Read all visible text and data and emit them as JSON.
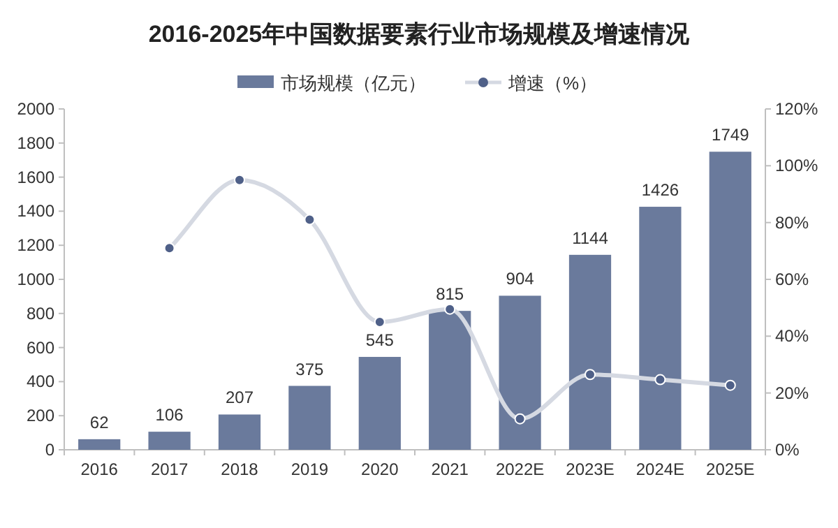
{
  "chart_data": {
    "type": "bar",
    "title": "2016-2025年中国数据要素行业市场规模及增速情况",
    "categories": [
      "2016",
      "2017",
      "2018",
      "2019",
      "2020",
      "2021",
      "2022E",
      "2023E",
      "2024E",
      "2025E"
    ],
    "series": [
      {
        "name": "市场规模（亿元）",
        "color": "#6a7a9c",
        "values": [
          62,
          106,
          207,
          375,
          545,
          815,
          904,
          1144,
          1426,
          1749
        ],
        "value_labels": [
          "62",
          "106",
          "207",
          "375",
          "545",
          "815",
          "904",
          "1144",
          "1426",
          "1749"
        ]
      },
      {
        "name": "增速（%）",
        "type": "line",
        "axis": "y2",
        "color": "#d5d9e2",
        "marker": "circle",
        "values": [
          null,
          71,
          95,
          81,
          45,
          49.5,
          10.9,
          26.5,
          24.7,
          22.7
        ]
      }
    ],
    "ylim": [
      0,
      2000
    ],
    "yticks": [
      0,
      200,
      400,
      600,
      800,
      1000,
      1200,
      1400,
      1600,
      1800,
      2000
    ],
    "y2lim": [
      0,
      120
    ],
    "y2ticks": [
      {
        "value": 0,
        "label": "0%"
      },
      {
        "value": 20,
        "label": "20%"
      },
      {
        "value": 40,
        "label": "40%"
      },
      {
        "value": 60,
        "label": "60%"
      },
      {
        "value": 80,
        "label": "80%"
      },
      {
        "value": 100,
        "label": "100%"
      },
      {
        "value": 120,
        "label": "120%"
      }
    ],
    "grid": false,
    "legend": "top"
  }
}
